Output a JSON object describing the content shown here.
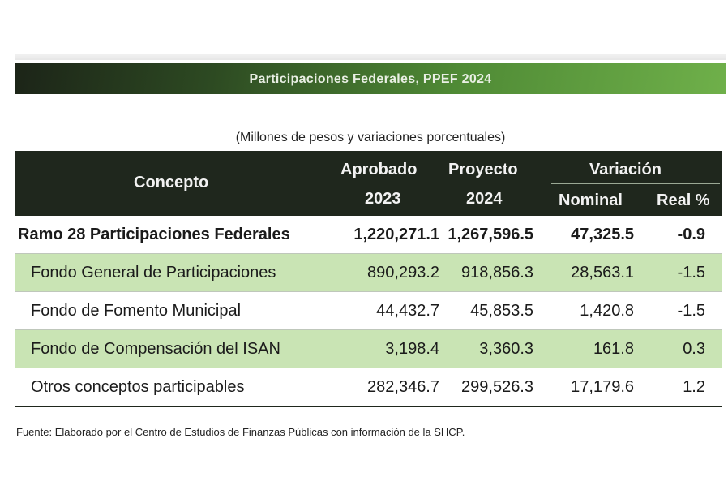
{
  "header": {
    "title": "Participaciones Federales, PPEF 2024",
    "subtitle": "(Millones de pesos y variaciones porcentuales)"
  },
  "table": {
    "headers": {
      "concepto": "Concepto",
      "aprobado": "Aprobado",
      "aprobado_year": "2023",
      "proyecto": "Proyecto",
      "proyecto_year": "2024",
      "variacion": "Variación",
      "nominal": "Nominal",
      "real": "Real %"
    },
    "rows": [
      {
        "concepto": "Ramo 28 Participaciones Federales",
        "aprobado": "1,220,271.1",
        "proyecto": "1,267,596.5",
        "nominal": "47,325.5",
        "real": "-0.9"
      },
      {
        "concepto": "Fondo General de Participaciones",
        "aprobado": "890,293.2",
        "proyecto": "918,856.3",
        "nominal": "28,563.1",
        "real": "-1.5"
      },
      {
        "concepto": "Fondo de Fomento Municipal",
        "aprobado": "44,432.7",
        "proyecto": "45,853.5",
        "nominal": "1,420.8",
        "real": "-1.5"
      },
      {
        "concepto": "Fondo de Compensación del ISAN",
        "aprobado": "3,198.4",
        "proyecto": "3,360.3",
        "nominal": "161.8",
        "real": "0.3"
      },
      {
        "concepto": "Otros conceptos participables",
        "aprobado": "282,346.7",
        "proyecto": "299,526.3",
        "nominal": "17,179.6",
        "real": "1.2"
      }
    ]
  },
  "source": "Fuente: Elaborado por el Centro de Estudios de Finanzas Públicas con información de la SHCP.",
  "colors": {
    "header_dark": "#1f271d",
    "row_shade": "#c9e4b4",
    "banner_green": "#4f8a35"
  }
}
